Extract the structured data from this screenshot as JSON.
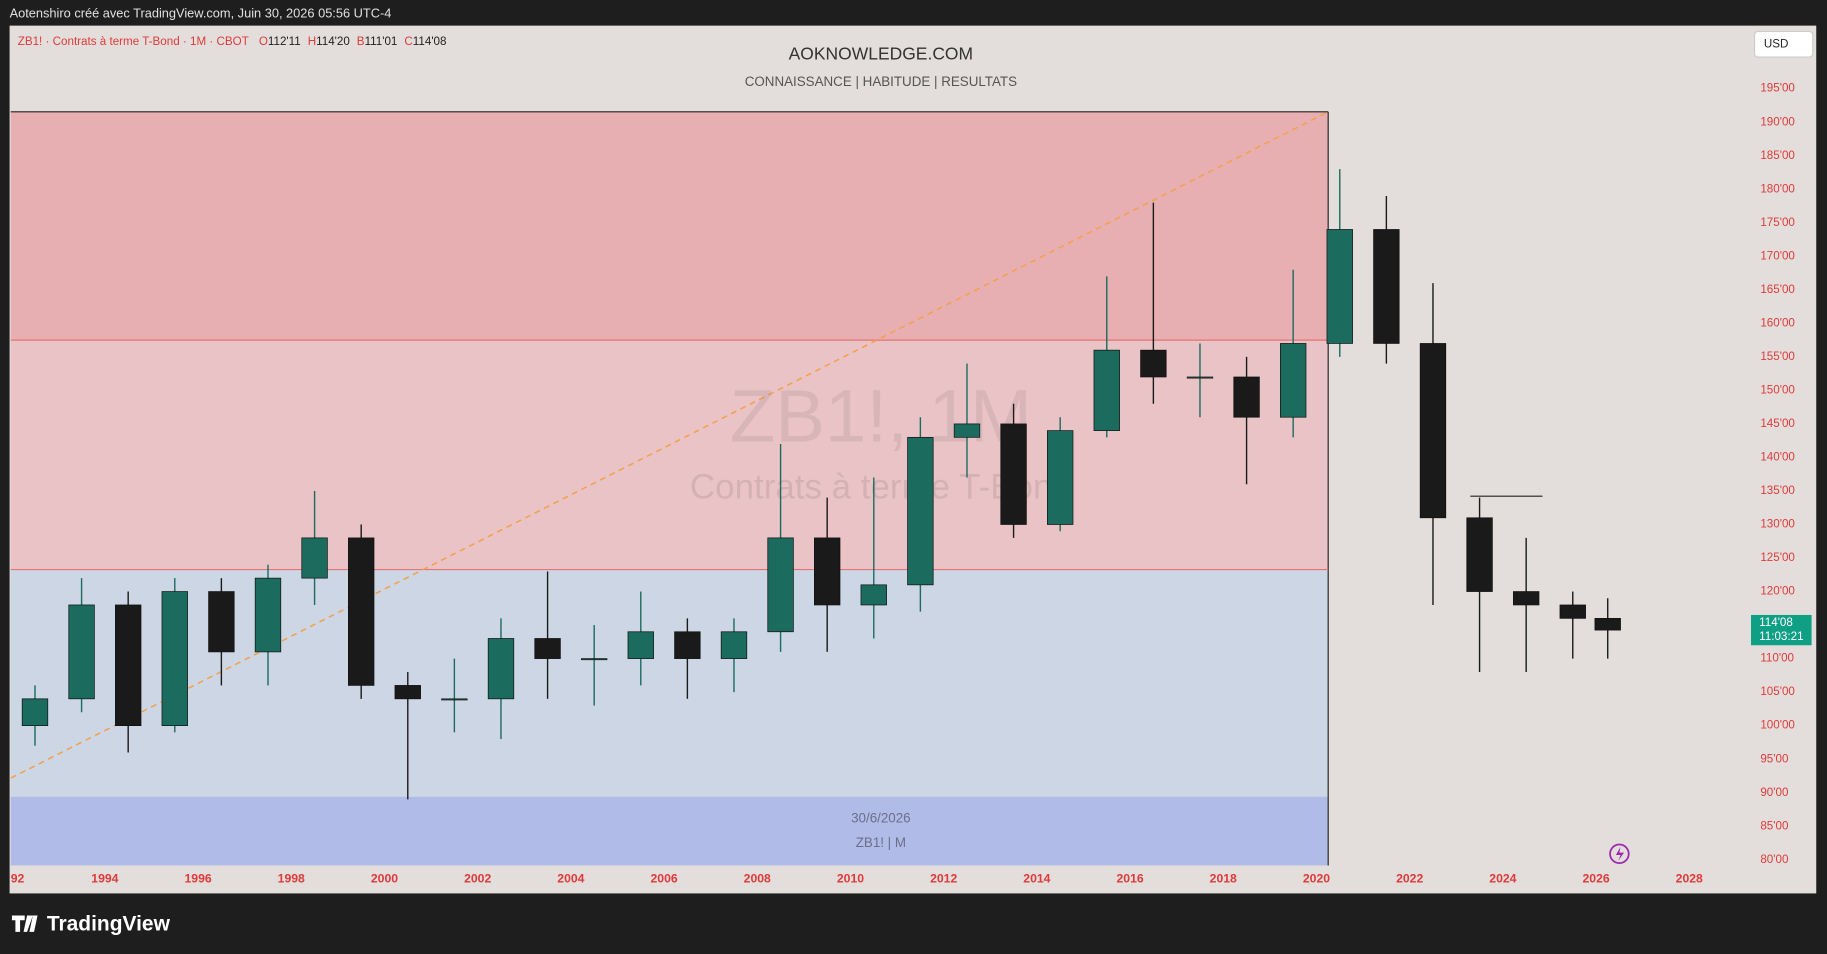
{
  "header": {
    "credit": "Aotenshiro créé avec TradingView.com, Juin 30, 2026 05:56 UTC-4"
  },
  "footer": {
    "brand": "TradingView"
  },
  "chart_data": {
    "type": "candlestick",
    "title": "AOKNOWLEDGE.COM",
    "subtitle": "CONNAISSANCE |  HABITUDE | RESULTATS",
    "symbol_legend": "ZB1! · Contrats à terme T-Bond · 1M · CBOT",
    "ohlc_legend": [
      {
        "key": "O",
        "value": "112'11"
      },
      {
        "key": "H",
        "value": "114'20"
      },
      {
        "key": "B",
        "value": "111'01"
      },
      {
        "key": "C",
        "value": "114'08"
      }
    ],
    "watermark": [
      "ZB1!, 1M",
      "Contrats à terme T-Bond"
    ],
    "info_box": [
      "30/6/2026",
      "ZB1! | M"
    ],
    "currency": "USD",
    "last_price_label": "114'08",
    "countdown": "11:03:21",
    "up_color": "#1b6b5f",
    "down_color": "#1a1a1a",
    "x": [
      1992.5,
      1993.5,
      1994.5,
      1995.5,
      1996.5,
      1997.5,
      1998.5,
      1999.5,
      2000.5,
      2001.5,
      2002.5,
      2003.5,
      2004.5,
      2005.5,
      2006.5,
      2007.5,
      2008.5,
      2009.5,
      2010.5,
      2011.5,
      2012.5,
      2013.5,
      2014.5,
      2015.5,
      2016.5,
      2017.5,
      2018.5,
      2019.5,
      2020.5,
      2021.5,
      2022.5,
      2023.5,
      2024.5,
      2025.5,
      2026.25
    ],
    "open": [
      100,
      104,
      118,
      100,
      120,
      111,
      122,
      128,
      106,
      104,
      104,
      113,
      110,
      110,
      114,
      110,
      114,
      128,
      118,
      121,
      143,
      145,
      130,
      144,
      156,
      152,
      152,
      146,
      157,
      174,
      157,
      131,
      120,
      118,
      116
    ],
    "high": [
      106,
      122,
      120,
      122,
      122,
      124,
      135,
      130,
      108,
      110,
      116,
      123,
      115,
      120,
      116,
      116,
      142,
      134,
      137,
      146,
      154,
      148,
      146,
      167,
      178,
      157,
      155,
      168,
      183,
      179,
      166,
      134,
      128,
      120,
      119
    ],
    "low": [
      97,
      102,
      96,
      99,
      106,
      106,
      118,
      104,
      89,
      99,
      98,
      104,
      103,
      106,
      104,
      105,
      111,
      111,
      113,
      117,
      137,
      128,
      129,
      143,
      148,
      146,
      136,
      143,
      155,
      154,
      118,
      108,
      108,
      110,
      110
    ],
    "close": [
      104,
      118,
      100,
      120,
      111,
      122,
      128,
      106,
      104,
      104,
      113,
      110,
      110,
      114,
      110,
      114,
      128,
      118,
      121,
      143,
      145,
      130,
      144,
      156,
      152,
      152,
      146,
      157,
      174,
      157,
      131,
      120,
      118,
      116,
      114.25
    ],
    "xlim": [
      1991.98,
      2029.25
    ],
    "xticks": [
      {
        "value": 1992,
        "label": "92"
      },
      1994,
      1996,
      1998,
      2000,
      2002,
      2004,
      2006,
      2008,
      2010,
      2012,
      2014,
      2016,
      2018,
      2020,
      2022,
      2024,
      2026,
      2028
    ],
    "ylim": [
      78.8,
      204.4
    ],
    "yticks": [
      {
        "value": 80,
        "label": "80'00"
      },
      {
        "value": 85,
        "label": "85'00"
      },
      {
        "value": 90,
        "label": "90'00"
      },
      {
        "value": 95,
        "label": "95'00"
      },
      {
        "value": 100,
        "label": "100'00"
      },
      {
        "value": 105,
        "label": "105'00"
      },
      {
        "value": 110,
        "label": "110'00"
      },
      {
        "value": 115,
        "label": "115'00"
      },
      {
        "value": 120,
        "label": "120'00"
      },
      {
        "value": 125,
        "label": "125'00"
      },
      {
        "value": 130,
        "label": "130'00"
      },
      {
        "value": 135,
        "label": "135'00"
      },
      {
        "value": 140,
        "label": "140'00"
      },
      {
        "value": 145,
        "label": "145'00"
      },
      {
        "value": 150,
        "label": "150'00"
      },
      {
        "value": 155,
        "label": "155'00"
      },
      {
        "value": 160,
        "label": "160'00"
      },
      {
        "value": 165,
        "label": "165'00"
      },
      {
        "value": 170,
        "label": "170'00"
      },
      {
        "value": 175,
        "label": "175'00"
      },
      {
        "value": 180,
        "label": "180'00"
      },
      {
        "value": 185,
        "label": "185'00"
      },
      {
        "value": 190,
        "label": "190'00"
      },
      {
        "value": 195,
        "label": "195'00"
      }
    ]
  }
}
